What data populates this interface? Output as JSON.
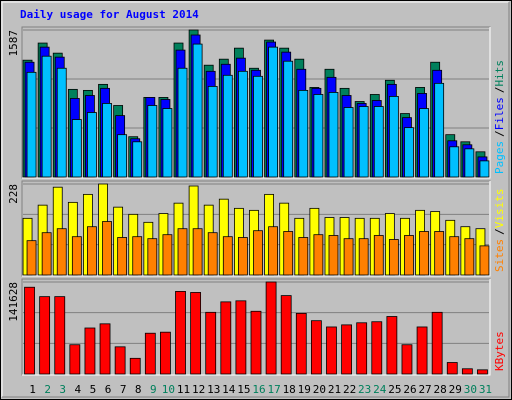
{
  "chart_data": [
    {
      "type": "bar",
      "title": "Daily usage for August 2014",
      "legend_separator": "/",
      "ylim": [
        0,
        1587
      ],
      "yticks": [
        1587
      ],
      "series": [
        {
          "name": "Hits",
          "color": "#00805c",
          "values": [
            1261,
            1446,
            1337,
            946,
            935,
            1000,
            772,
            435,
            859,
            859,
            1446,
            1587,
            1207,
            1272,
            1391,
            1174,
            1478,
            1391,
            1272,
            967,
            1163,
            957,
            815,
            891,
            1044,
            685,
            967,
            1239,
            457,
            380,
            272
          ]
        },
        {
          "name": "Files",
          "color": "#0000ff",
          "values": [
            1239,
            1402,
            1294,
            848,
            880,
            957,
            663,
            413,
            859,
            837,
            1370,
            1533,
            1141,
            1217,
            1283,
            1152,
            1457,
            1348,
            1163,
            957,
            1076,
            880,
            794,
            826,
            1000,
            641,
            902,
            1152,
            391,
            348,
            217
          ]
        },
        {
          "name": "Pages",
          "color": "#00c0ff",
          "values": [
            1130,
            1304,
            1174,
            620,
            696,
            794,
            457,
            380,
            772,
            739,
            1174,
            1435,
            978,
            1098,
            1141,
            1087,
            1402,
            1250,
            935,
            891,
            913,
            750,
            761,
            761,
            870,
            533,
            739,
            1011,
            326,
            304,
            174
          ]
        }
      ]
    },
    {
      "type": "bar",
      "legend_separator": "/",
      "ylim": [
        0,
        228
      ],
      "yticks": [
        228
      ],
      "series": [
        {
          "name": "Visits",
          "color": "#ffff00",
          "values": [
            142,
            175,
            220,
            182,
            202,
            228,
            170,
            152,
            132,
            154,
            180,
            223,
            175,
            190,
            167,
            162,
            202,
            180,
            142,
            167,
            144,
            144,
            142,
            142,
            154,
            142,
            162,
            159,
            137,
            121,
            116
          ]
        },
        {
          "name": "Sites",
          "color": "#ff8000",
          "values": [
            86,
            106,
            116,
            96,
            121,
            134,
            94,
            96,
            91,
            101,
            116,
            116,
            106,
            96,
            94,
            111,
            121,
            109,
            94,
            101,
            99,
            91,
            91,
            99,
            89,
            99,
            109,
            109,
            96,
            91,
            73
          ]
        }
      ]
    },
    {
      "type": "bar",
      "ylim": [
        0,
        141628
      ],
      "yticks": [
        141628
      ],
      "categories": [
        "1",
        "2",
        "3",
        "4",
        "5",
        "6",
        "7",
        "8",
        "9",
        "10",
        "11",
        "12",
        "13",
        "14",
        "15",
        "16",
        "17",
        "18",
        "19",
        "20",
        "21",
        "22",
        "23",
        "24",
        "25",
        "26",
        "27",
        "28",
        "29",
        "30",
        "31"
      ],
      "category_colors": [
        "#000000",
        "#00805c",
        "#00805c",
        "#000000",
        "#000000",
        "#000000",
        "#000000",
        "#000000",
        "#00805c",
        "#00805c",
        "#000000",
        "#000000",
        "#000000",
        "#000000",
        "#000000",
        "#00805c",
        "#00805c",
        "#000000",
        "#000000",
        "#000000",
        "#000000",
        "#000000",
        "#00805c",
        "#00805c",
        "#000000",
        "#000000",
        "#000000",
        "#000000",
        "#000000",
        "#00805c",
        "#00805c"
      ],
      "series": [
        {
          "name": "KBytes",
          "color": "#ff0000",
          "values": [
            133560,
            119100,
            119100,
            45060,
            70810,
            77250,
            41840,
            24140,
            62770,
            64370,
            127140,
            125530,
            94950,
            111050,
            112660,
            96560,
            141628,
            120700,
            93340,
            82080,
            72420,
            75640,
            78860,
            80470,
            88510,
            45060,
            72420,
            94950,
            17700,
            8050,
            6440
          ]
        }
      ]
    }
  ]
}
